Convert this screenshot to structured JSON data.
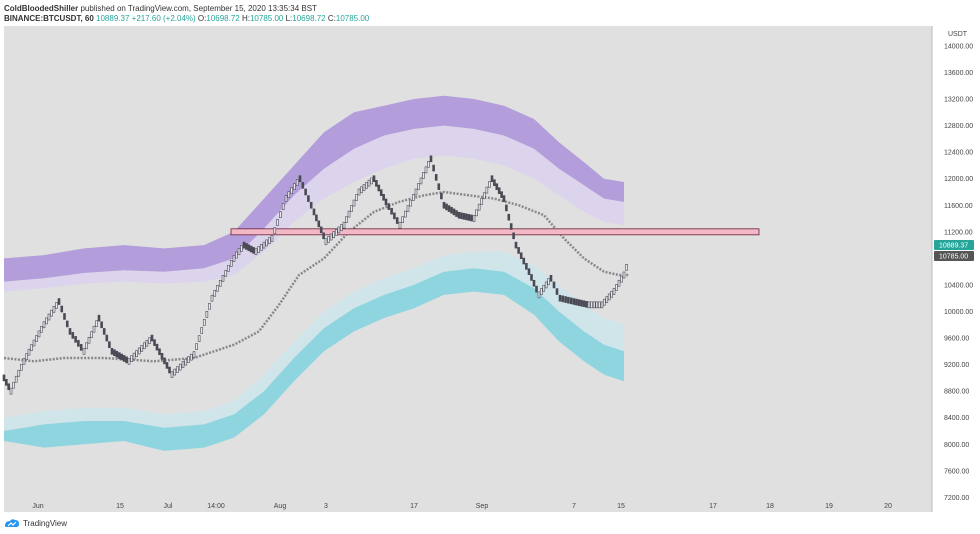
{
  "header": {
    "author": "ColdBloodedShiller",
    "published": "published on TradingView.com, September 15, 2020 13:35:34 BST",
    "symbol": "BINANCE:BTCUSDT, 60",
    "last": "10889.37",
    "change": "+217.60 (+2.04%)",
    "o_label": "O:",
    "o": "10698.72",
    "h_label": "H:",
    "h": "10785.00",
    "l_label": "L:",
    "l": "10698.72",
    "c_label": "C:",
    "c": "10785.00"
  },
  "footer": {
    "brand": "TradingView",
    "logo_icon": "tradingview-logo-icon"
  },
  "colors": {
    "bg": "#e0e0e0",
    "purple": "#b39ddb",
    "purple_light": "#dcd4ec",
    "cyan": "#8fd5df",
    "cyan_light": "#cfe5ea",
    "candle": "#4a4a55",
    "ma": "#888888",
    "level_fill": "#f2b8c6",
    "level_stroke": "#6b1f35",
    "price_tag_green": "#26a69a",
    "price_tag_dark": "#555555"
  },
  "chart_data": {
    "type": "line",
    "xlabels": [
      "Jun",
      "15",
      "Jul",
      "14:00",
      "Aug",
      "3",
      "17",
      "Sep",
      "7",
      "15",
      "17",
      "18",
      "19",
      "20"
    ],
    "currency": "USDT",
    "y_ticks": [
      7200,
      7600,
      8000,
      8400,
      8800,
      9200,
      9600,
      10000,
      10400,
      10800,
      11200,
      11600,
      12000,
      12400,
      12800,
      13200,
      13600,
      14000
    ],
    "ylim": [
      6980,
      14300
    ],
    "horizontal_level": 11200,
    "price_tags": [
      "10889.37",
      "10785.00"
    ],
    "series": [
      {
        "role": "price",
        "points": [
          [
            0,
            9000
          ],
          [
            7,
            8800
          ],
          [
            20,
            9250
          ],
          [
            40,
            9800
          ],
          [
            55,
            10150
          ],
          [
            66,
            9700
          ],
          [
            80,
            9400
          ],
          [
            95,
            9900
          ],
          [
            108,
            9400
          ],
          [
            125,
            9250
          ],
          [
            148,
            9600
          ],
          [
            168,
            9050
          ],
          [
            190,
            9350
          ],
          [
            208,
            10200
          ],
          [
            230,
            10800
          ],
          [
            240,
            11000
          ],
          [
            252,
            10900
          ],
          [
            268,
            11100
          ],
          [
            282,
            11700
          ],
          [
            296,
            12000
          ],
          [
            310,
            11500
          ],
          [
            322,
            11050
          ],
          [
            340,
            11300
          ],
          [
            355,
            11800
          ],
          [
            370,
            12000
          ],
          [
            382,
            11650
          ],
          [
            396,
            11300
          ],
          [
            412,
            11800
          ],
          [
            427,
            12300
          ],
          [
            440,
            11600
          ],
          [
            455,
            11450
          ],
          [
            470,
            11400
          ],
          [
            488,
            12000
          ],
          [
            500,
            11700
          ],
          [
            512,
            11000
          ],
          [
            525,
            10600
          ],
          [
            535,
            10250
          ],
          [
            547,
            10500
          ],
          [
            556,
            10200
          ],
          [
            570,
            10150
          ],
          [
            585,
            10100
          ],
          [
            598,
            10100
          ],
          [
            610,
            10300
          ],
          [
            620,
            10550
          ],
          [
            625,
            10780
          ]
        ]
      },
      {
        "role": "moving-average",
        "points": [
          [
            0,
            9300
          ],
          [
            30,
            9250
          ],
          [
            60,
            9300
          ],
          [
            100,
            9300
          ],
          [
            150,
            9250
          ],
          [
            190,
            9300
          ],
          [
            230,
            9500
          ],
          [
            255,
            9700
          ],
          [
            275,
            10100
          ],
          [
            295,
            10550
          ],
          [
            320,
            10800
          ],
          [
            345,
            11200
          ],
          [
            370,
            11500
          ],
          [
            395,
            11650
          ],
          [
            420,
            11750
          ],
          [
            440,
            11800
          ],
          [
            465,
            11750
          ],
          [
            490,
            11700
          ],
          [
            515,
            11600
          ],
          [
            540,
            11450
          ],
          [
            560,
            11100
          ],
          [
            580,
            10800
          ],
          [
            600,
            10600
          ],
          [
            615,
            10550
          ],
          [
            625,
            10550
          ]
        ]
      },
      {
        "role": "upper-band-top",
        "points": [
          [
            0,
            10800
          ],
          [
            40,
            10850
          ],
          [
            80,
            10950
          ],
          [
            120,
            11000
          ],
          [
            160,
            10950
          ],
          [
            200,
            11000
          ],
          [
            230,
            11200
          ],
          [
            260,
            11700
          ],
          [
            290,
            12200
          ],
          [
            320,
            12700
          ],
          [
            350,
            13000
          ],
          [
            380,
            13100
          ],
          [
            410,
            13200
          ],
          [
            440,
            13250
          ],
          [
            470,
            13200
          ],
          [
            500,
            13100
          ],
          [
            530,
            12900
          ],
          [
            555,
            12550
          ],
          [
            580,
            12250
          ],
          [
            600,
            12000
          ],
          [
            620,
            11950
          ]
        ]
      },
      {
        "role": "upper-band-bottom",
        "points": [
          [
            0,
            10450
          ],
          [
            40,
            10500
          ],
          [
            80,
            10580
          ],
          [
            120,
            10620
          ],
          [
            160,
            10600
          ],
          [
            200,
            10650
          ],
          [
            230,
            10800
          ],
          [
            260,
            11250
          ],
          [
            290,
            11750
          ],
          [
            320,
            12150
          ],
          [
            350,
            12450
          ],
          [
            380,
            12650
          ],
          [
            410,
            12750
          ],
          [
            440,
            12800
          ],
          [
            470,
            12750
          ],
          [
            500,
            12650
          ],
          [
            530,
            12450
          ],
          [
            555,
            12150
          ],
          [
            580,
            11900
          ],
          [
            600,
            11700
          ],
          [
            620,
            11650
          ]
        ]
      },
      {
        "role": "mid-band-bottom",
        "points": [
          [
            0,
            10300
          ],
          [
            40,
            10350
          ],
          [
            80,
            10420
          ],
          [
            120,
            10450
          ],
          [
            160,
            10420
          ],
          [
            200,
            10450
          ],
          [
            230,
            10550
          ],
          [
            260,
            10900
          ],
          [
            290,
            11350
          ],
          [
            320,
            11700
          ],
          [
            350,
            11950
          ],
          [
            380,
            12150
          ],
          [
            410,
            12300
          ],
          [
            440,
            12350
          ],
          [
            470,
            12300
          ],
          [
            500,
            12200
          ],
          [
            530,
            12000
          ],
          [
            555,
            11750
          ],
          [
            580,
            11500
          ],
          [
            600,
            11350
          ],
          [
            620,
            11300
          ]
        ]
      },
      {
        "role": "lower-band-top",
        "points": [
          [
            0,
            8400
          ],
          [
            40,
            8500
          ],
          [
            80,
            8550
          ],
          [
            120,
            8550
          ],
          [
            160,
            8450
          ],
          [
            200,
            8500
          ],
          [
            230,
            8650
          ],
          [
            260,
            9050
          ],
          [
            290,
            9550
          ],
          [
            320,
            10000
          ],
          [
            350,
            10300
          ],
          [
            380,
            10500
          ],
          [
            410,
            10650
          ],
          [
            440,
            10850
          ],
          [
            470,
            10900
          ],
          [
            500,
            10900
          ],
          [
            530,
            10700
          ],
          [
            555,
            10400
          ],
          [
            580,
            10100
          ],
          [
            600,
            9900
          ],
          [
            620,
            9800
          ]
        ]
      },
      {
        "role": "lower-band-mid",
        "points": [
          [
            0,
            8200
          ],
          [
            40,
            8300
          ],
          [
            80,
            8350
          ],
          [
            120,
            8350
          ],
          [
            160,
            8250
          ],
          [
            200,
            8300
          ],
          [
            230,
            8450
          ],
          [
            260,
            8800
          ],
          [
            290,
            9300
          ],
          [
            320,
            9750
          ],
          [
            350,
            10050
          ],
          [
            380,
            10250
          ],
          [
            410,
            10400
          ],
          [
            440,
            10600
          ],
          [
            470,
            10650
          ],
          [
            500,
            10600
          ],
          [
            530,
            10350
          ],
          [
            555,
            10000
          ],
          [
            580,
            9700
          ],
          [
            600,
            9500
          ],
          [
            620,
            9400
          ]
        ]
      },
      {
        "role": "lower-band-bottom",
        "points": [
          [
            0,
            8050
          ],
          [
            40,
            7950
          ],
          [
            80,
            8000
          ],
          [
            120,
            8050
          ],
          [
            160,
            7900
          ],
          [
            200,
            7950
          ],
          [
            230,
            8100
          ],
          [
            260,
            8450
          ],
          [
            290,
            8950
          ],
          [
            320,
            9400
          ],
          [
            350,
            9700
          ],
          [
            380,
            9900
          ],
          [
            410,
            10050
          ],
          [
            440,
            10250
          ],
          [
            470,
            10300
          ],
          [
            500,
            10250
          ],
          [
            530,
            9950
          ],
          [
            555,
            9550
          ],
          [
            580,
            9250
          ],
          [
            600,
            9050
          ],
          [
            620,
            8950
          ]
        ]
      }
    ]
  }
}
